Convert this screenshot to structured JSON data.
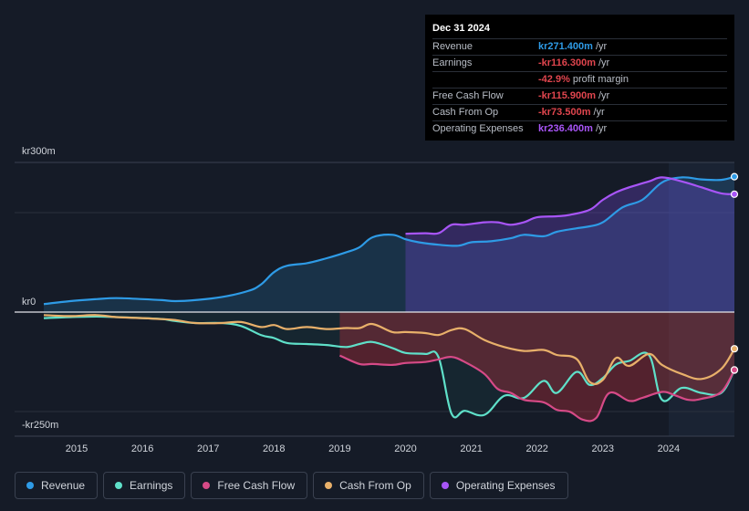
{
  "tooltip": {
    "date": "Dec 31 2024",
    "rows": [
      {
        "label": "Revenue",
        "value": "kr271.400m",
        "unit": "/yr",
        "color": "#2e9be6"
      },
      {
        "label": "Earnings",
        "value": "-kr116.300m",
        "unit": "/yr",
        "color": "#e0454e"
      },
      {
        "label": "",
        "value": "-42.9%",
        "unit": "profit margin",
        "color": "#e0454e"
      },
      {
        "label": "Free Cash Flow",
        "value": "-kr115.900m",
        "unit": "/yr",
        "color": "#e0454e"
      },
      {
        "label": "Cash From Op",
        "value": "-kr73.500m",
        "unit": "/yr",
        "color": "#e0454e"
      },
      {
        "label": "Operating Expenses",
        "value": "kr236.400m",
        "unit": "/yr",
        "color": "#a855f7"
      }
    ]
  },
  "legend": [
    {
      "label": "Revenue",
      "color": "#2e9be6"
    },
    {
      "label": "Earnings",
      "color": "#5fe0c9"
    },
    {
      "label": "Free Cash Flow",
      "color": "#d64a87"
    },
    {
      "label": "Cash From Op",
      "color": "#e8b06a"
    },
    {
      "label": "Operating Expenses",
      "color": "#a855f7"
    }
  ],
  "chart_data": {
    "type": "line",
    "title": "",
    "ylim": [
      -250,
      300
    ],
    "y_tick_labels": [
      "kr300m",
      "kr0",
      "-kr250m"
    ],
    "x_tick_labels": [
      "2015",
      "2016",
      "2017",
      "2018",
      "2019",
      "2020",
      "2021",
      "2022",
      "2023",
      "2024"
    ],
    "xlim": [
      2014.5,
      2025.0
    ],
    "series": [
      {
        "name": "Revenue",
        "color": "#2e9be6",
        "x": [
          2014.5,
          2014.9,
          2015.3,
          2015.6,
          2016.0,
          2016.3,
          2016.5,
          2016.8,
          2017.2,
          2017.6,
          2017.8,
          2018.0,
          2018.2,
          2018.5,
          2018.8,
          2019.1,
          2019.3,
          2019.5,
          2019.8,
          2020.0,
          2020.2,
          2020.5,
          2020.8,
          2021.0,
          2021.3,
          2021.6,
          2021.8,
          2022.1,
          2022.3,
          2022.6,
          2022.8,
          2023.0,
          2023.3,
          2023.6,
          2023.9,
          2024.2,
          2024.5,
          2024.8,
          2025.0
        ],
        "values": [
          16,
          22,
          26,
          28,
          26,
          24,
          22,
          24,
          30,
          42,
          55,
          80,
          93,
          98,
          108,
          120,
          130,
          150,
          155,
          146,
          140,
          135,
          133,
          140,
          142,
          148,
          155,
          152,
          161,
          168,
          172,
          180,
          210,
          225,
          260,
          270,
          266,
          265,
          271.4
        ]
      },
      {
        "name": "Operating Expenses",
        "color": "#a855f7",
        "x": [
          2020.0,
          2020.3,
          2020.5,
          2020.7,
          2020.9,
          2021.2,
          2021.4,
          2021.6,
          2021.8,
          2022.0,
          2022.3,
          2022.5,
          2022.8,
          2023.0,
          2023.2,
          2023.4,
          2023.7,
          2023.9,
          2024.2,
          2024.5,
          2024.8,
          2025.0
        ],
        "values": [
          157,
          158,
          158,
          175,
          175,
          180,
          180,
          175,
          180,
          190,
          192,
          195,
          205,
          225,
          240,
          250,
          262,
          270,
          262,
          250,
          238,
          236.4
        ]
      },
      {
        "name": "Earnings",
        "color": "#5fe0c9",
        "x": [
          2014.5,
          2014.9,
          2015.3,
          2015.6,
          2016.0,
          2016.3,
          2016.5,
          2016.8,
          2017.2,
          2017.5,
          2017.8,
          2018.0,
          2018.2,
          2018.5,
          2018.8,
          2019.1,
          2019.3,
          2019.5,
          2019.8,
          2020.0,
          2020.3,
          2020.5,
          2020.7,
          2020.9,
          2021.2,
          2021.5,
          2021.8,
          2022.1,
          2022.3,
          2022.6,
          2022.8,
          2023.0,
          2023.2,
          2023.4,
          2023.7,
          2023.9,
          2024.2,
          2024.5,
          2024.8,
          2025.0
        ],
        "values": [
          -12,
          -10,
          -9,
          -10,
          -12,
          -14,
          -18,
          -22,
          -22,
          -28,
          -46,
          -52,
          -62,
          -64,
          -66,
          -70,
          -64,
          -60,
          -72,
          -82,
          -84,
          -90,
          -204,
          -198,
          -206,
          -168,
          -172,
          -138,
          -162,
          -120,
          -146,
          -132,
          -105,
          -98,
          -86,
          -176,
          -152,
          -162,
          -162,
          -116.3
        ]
      },
      {
        "name": "Free Cash Flow",
        "color": "#d64a87",
        "x": [
          2019.0,
          2019.3,
          2019.5,
          2019.8,
          2020.0,
          2020.3,
          2020.5,
          2020.7,
          2020.9,
          2021.2,
          2021.4,
          2021.6,
          2021.8,
          2022.1,
          2022.3,
          2022.5,
          2022.7,
          2022.9,
          2023.1,
          2023.4,
          2023.6,
          2023.9,
          2024.1,
          2024.3,
          2024.5,
          2024.8,
          2025.0
        ],
        "values": [
          -87,
          -104,
          -104,
          -106,
          -102,
          -100,
          -95,
          -90,
          -100,
          -124,
          -154,
          -162,
          -176,
          -181,
          -196,
          -200,
          -216,
          -212,
          -162,
          -178,
          -172,
          -160,
          -167,
          -176,
          -174,
          -160,
          -115.9
        ]
      },
      {
        "name": "Cash From Op",
        "color": "#e8b06a",
        "x": [
          2014.5,
          2014.9,
          2015.3,
          2015.6,
          2016.0,
          2016.3,
          2016.5,
          2016.8,
          2017.2,
          2017.5,
          2017.8,
          2018.0,
          2018.2,
          2018.5,
          2018.8,
          2019.1,
          2019.3,
          2019.5,
          2019.8,
          2020.0,
          2020.3,
          2020.5,
          2020.7,
          2020.9,
          2021.2,
          2021.5,
          2021.8,
          2022.1,
          2022.3,
          2022.6,
          2022.8,
          2023.0,
          2023.2,
          2023.4,
          2023.7,
          2023.9,
          2024.2,
          2024.5,
          2024.8,
          2025.0
        ],
        "values": [
          -6,
          -8,
          -6,
          -10,
          -12,
          -14,
          -16,
          -22,
          -22,
          -20,
          -30,
          -26,
          -34,
          -30,
          -34,
          -32,
          -32,
          -24,
          -40,
          -40,
          -42,
          -46,
          -36,
          -34,
          -56,
          -70,
          -78,
          -76,
          -86,
          -94,
          -140,
          -136,
          -92,
          -108,
          -84,
          -106,
          -124,
          -134,
          -114,
          -73.5
        ]
      }
    ]
  }
}
